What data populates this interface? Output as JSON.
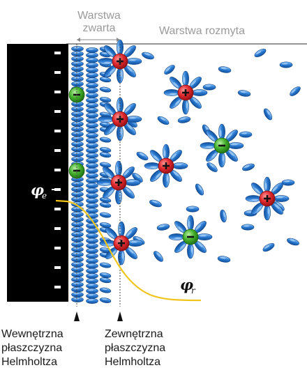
{
  "labels": {
    "compact_top": "Warstwa",
    "compact_bottom": "zwarta",
    "diffuse": "Warstwa rozmyta",
    "phi_e": "φ",
    "phi_e_sub": "e",
    "phi_r": "φ",
    "phi_r_sub": "r",
    "inner_line1": "Wewnętrzna",
    "inner_line2": "płaszczyzna",
    "inner_line3": "Helmholtza",
    "outer_line1": "Zewnętrzna",
    "outer_line2": "płaszczyzna",
    "outer_line3": "Helmholtza"
  },
  "symbols": {
    "minus": "-",
    "plus": "+"
  },
  "colors": {
    "electrode": "#000000",
    "water": "#2f7fd6",
    "cation": "#d8252b",
    "anion": "#3fae2a",
    "potential_curve": "#f0c419",
    "label_gray": "#9a9a9a"
  }
}
